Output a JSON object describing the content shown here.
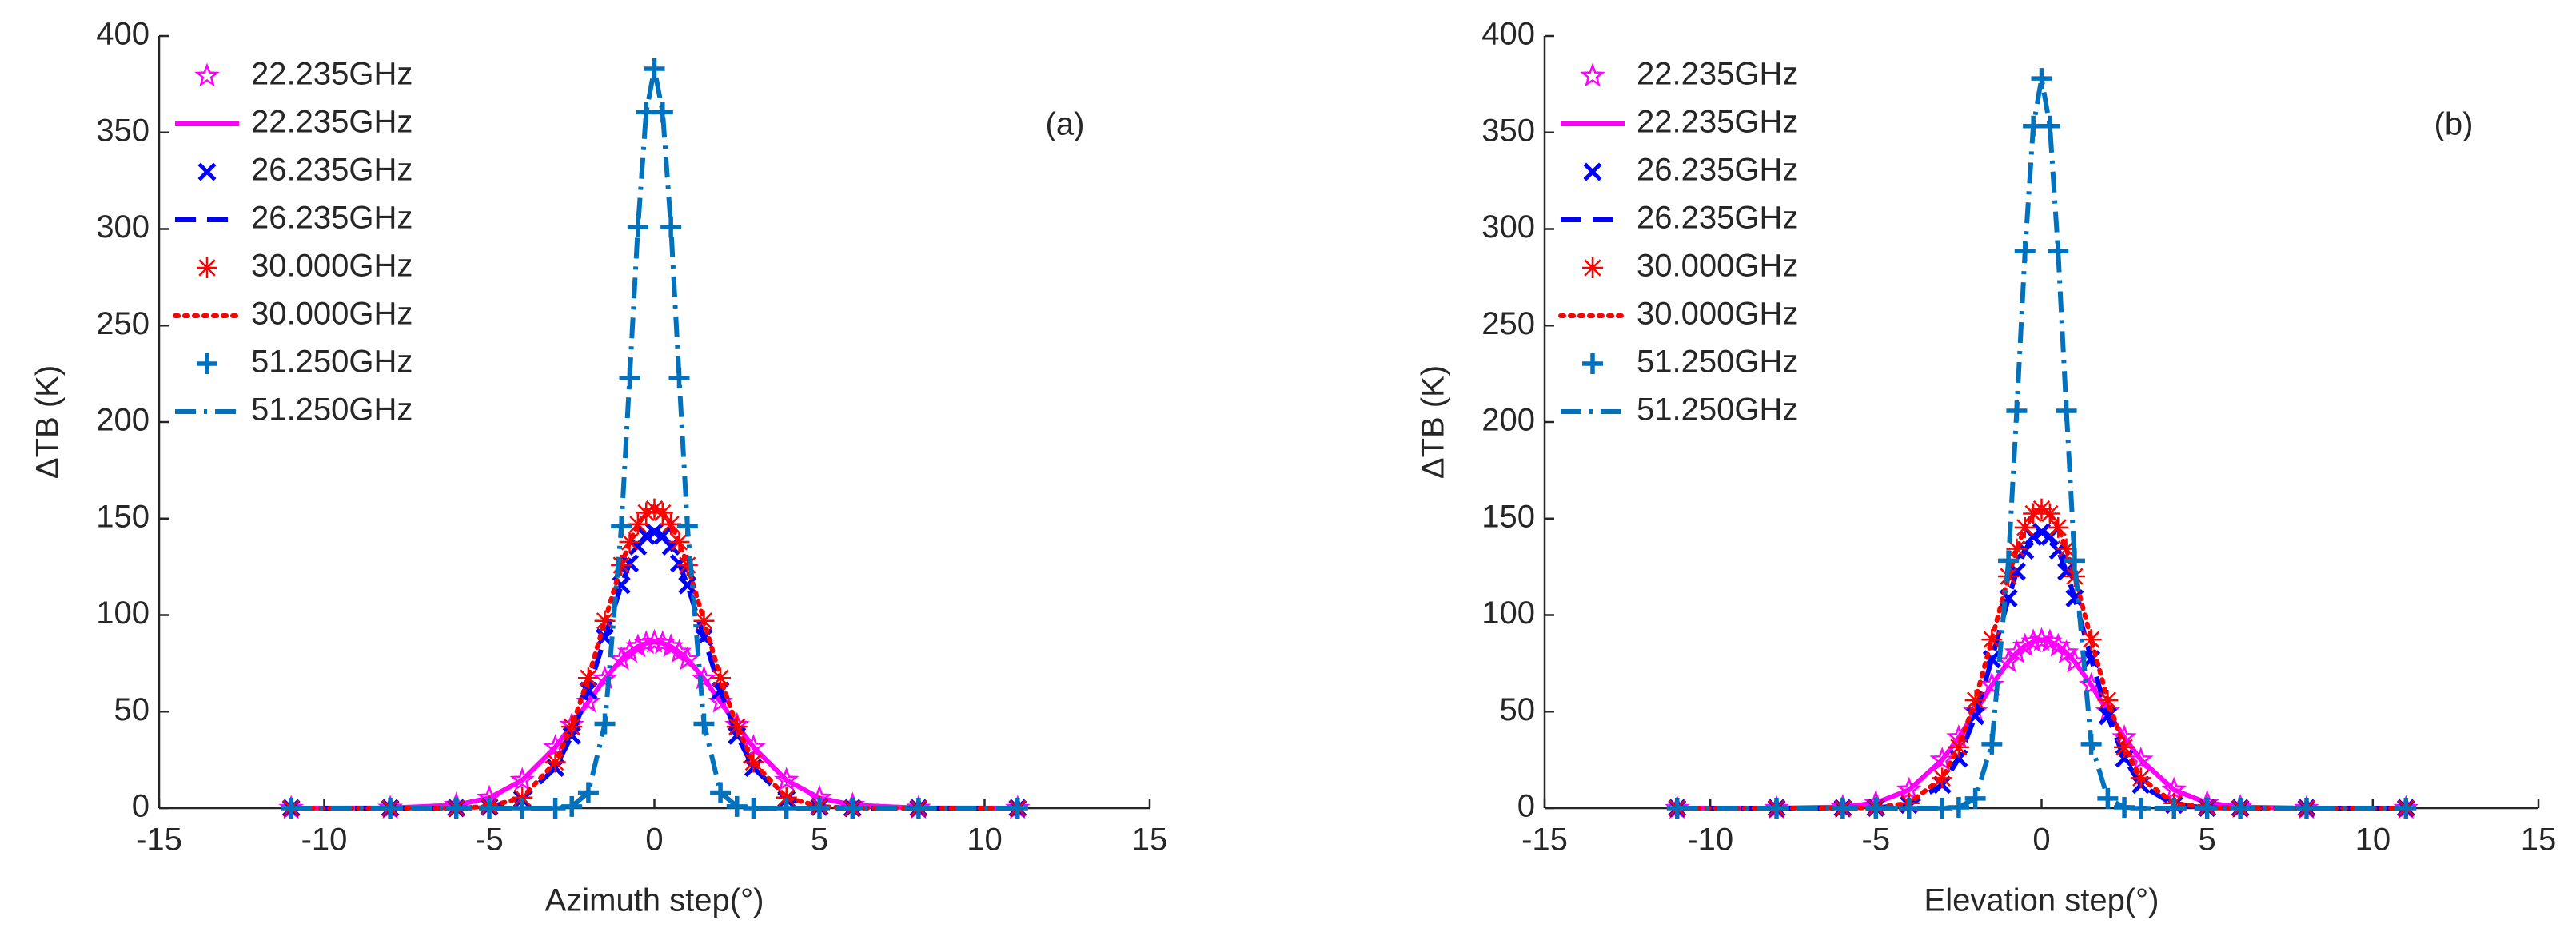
{
  "chart_data": [
    {
      "type": "line",
      "xlabel": "Azimuth step(°)",
      "ylabel": "ΔTB (K)",
      "annotation": "(a)",
      "x": [
        -11,
        -8,
        -6,
        -5,
        -4,
        -3,
        -2.5,
        -2,
        -1.5,
        -1,
        -0.75,
        -0.5,
        -0.25,
        0,
        0.25,
        0.5,
        0.75,
        1,
        1.5,
        2,
        2.5,
        3,
        4,
        5,
        6,
        8,
        11
      ],
      "xlim": [
        -15,
        15
      ],
      "xticks": [
        -15,
        -10,
        -5,
        0,
        5,
        10,
        15
      ],
      "ylim": [
        0,
        400
      ],
      "yticks": [
        0,
        50,
        100,
        150,
        200,
        250,
        300,
        350,
        400
      ],
      "legend": "upper left",
      "series": [
        {
          "name": "22.235GHz",
          "color": "#ff00ff",
          "marker": "pentagram",
          "values": [
            0,
            0.1,
            1.6,
            5.3,
            14.5,
            31.6,
            43,
            55,
            67,
            77,
            80.8,
            83.7,
            85.4,
            86,
            85.4,
            83.7,
            80.8,
            77,
            67,
            55,
            43,
            31.6,
            14.5,
            5.3,
            1.6,
            0.1,
            0
          ]
        },
        {
          "name": "22.235GHz",
          "color": "#ff00ff",
          "linestyle": "solid",
          "values": [
            0,
            0.1,
            1.6,
            5.3,
            14.5,
            31.6,
            43,
            55,
            67,
            77,
            80.8,
            83.7,
            85.4,
            86,
            85.4,
            83.7,
            80.8,
            77,
            67,
            55,
            43,
            31.6,
            14.5,
            5.3,
            1.6,
            0.1,
            0
          ]
        },
        {
          "name": "26.235GHz",
          "color": "#0000ff",
          "marker": "x",
          "values": [
            0,
            0,
            0,
            0.7,
            4.7,
            20.9,
            37.6,
            60.8,
            88.4,
            115.5,
            126.8,
            135.6,
            141.1,
            143,
            141.1,
            135.6,
            126.8,
            115.5,
            88.4,
            60.8,
            37.6,
            20.9,
            4.7,
            0.7,
            0,
            0,
            0
          ]
        },
        {
          "name": "26.235GHz",
          "color": "#0000ff",
          "linestyle": "dashed",
          "values": [
            0,
            0,
            0,
            0.7,
            4.7,
            20.9,
            37.6,
            60.8,
            88.4,
            115.5,
            126.8,
            135.6,
            141.1,
            143,
            141.1,
            135.6,
            126.8,
            115.5,
            88.4,
            60.8,
            37.6,
            20.9,
            4.7,
            0.7,
            0,
            0,
            0
          ]
        },
        {
          "name": "30.000GHz",
          "color": "#ff0000",
          "marker": "asterisk",
          "values": [
            0,
            0,
            0,
            0.9,
            5.5,
            23.8,
            42.2,
            67.4,
            97,
            125.9,
            137.9,
            147.1,
            153,
            155,
            153,
            147.1,
            137.9,
            125.9,
            97,
            67.4,
            42.2,
            23.8,
            5.5,
            0.9,
            0,
            0,
            0
          ]
        },
        {
          "name": "30.000GHz",
          "color": "#ff0000",
          "linestyle": "dotted",
          "values": [
            0,
            0,
            0,
            0.9,
            5.5,
            23.8,
            42.2,
            67.4,
            97,
            125.9,
            137.9,
            147.1,
            153,
            155,
            153,
            147.1,
            137.9,
            125.9,
            97,
            67.4,
            42.2,
            23.8,
            5.5,
            0.9,
            0,
            0,
            0
          ]
        },
        {
          "name": "51.250GHz",
          "color": "#0072bd",
          "marker": "plus",
          "values": [
            0,
            0,
            0,
            0,
            0,
            0,
            0.9,
            8.1,
            43.7,
            146,
            222.7,
            301,
            360.5,
            383,
            360.5,
            301,
            222.7,
            146,
            43.7,
            8.1,
            0.9,
            0,
            0,
            0,
            0,
            0,
            0
          ]
        },
        {
          "name": "51.250GHz",
          "color": "#0072bd",
          "linestyle": "dashdot",
          "values": [
            0,
            0,
            0,
            0,
            0,
            0,
            0.9,
            8.1,
            43.7,
            146,
            222.7,
            301,
            360.5,
            383,
            360.5,
            301,
            222.7,
            146,
            43.7,
            8.1,
            0.9,
            0,
            0,
            0,
            0,
            0,
            0
          ]
        }
      ]
    },
    {
      "type": "line",
      "xlabel": "Elevation step(°)",
      "ylabel": "ΔTB (K)",
      "annotation": "(b)",
      "x": [
        -11,
        -8,
        -6,
        -5,
        -4,
        -3,
        -2.5,
        -2,
        -1.5,
        -1,
        -0.75,
        -0.5,
        -0.25,
        0,
        0.25,
        0.5,
        0.75,
        1,
        1.5,
        2,
        2.5,
        3,
        4,
        5,
        6,
        8,
        11
      ],
      "xlim": [
        -15,
        15
      ],
      "xticks": [
        -15,
        -10,
        -5,
        0,
        5,
        10,
        15
      ],
      "ylim": [
        0,
        400
      ],
      "yticks": [
        0,
        50,
        100,
        150,
        200,
        250,
        300,
        350,
        400
      ],
      "legend": "upper left",
      "series": [
        {
          "name": "22.235GHz",
          "color": "#ff00ff",
          "marker": "pentagram",
          "values": [
            0,
            0,
            0.6,
            2.7,
            9.5,
            25,
            36.6,
            50,
            63.7,
            75.8,
            80.5,
            84,
            86.2,
            87,
            86.2,
            84,
            80.5,
            75.8,
            63.7,
            50,
            36.6,
            25,
            9.5,
            2.7,
            0.6,
            0,
            0
          ]
        },
        {
          "name": "22.235GHz",
          "color": "#ff00ff",
          "linestyle": "solid",
          "values": [
            0,
            0,
            0.6,
            2.7,
            9.5,
            25,
            36.6,
            50,
            63.7,
            75.8,
            80.5,
            84,
            86.2,
            87,
            86.2,
            84,
            80.5,
            75.8,
            63.7,
            50,
            36.6,
            25,
            9.5,
            2.7,
            0.6,
            0,
            0
          ]
        },
        {
          "name": "26.235GHz",
          "color": "#0000ff",
          "marker": "x",
          "values": [
            0,
            0,
            0,
            0.2,
            1.8,
            12.1,
            25.7,
            47.7,
            77.1,
            108.7,
            122.6,
            133.5,
            140.6,
            143,
            140.6,
            133.5,
            122.6,
            108.7,
            77.1,
            47.7,
            25.7,
            12.1,
            1.8,
            0.2,
            0,
            0,
            0
          ]
        },
        {
          "name": "26.235GHz",
          "color": "#0000ff",
          "linestyle": "dashed",
          "values": [
            0,
            0,
            0,
            0.2,
            1.8,
            12.1,
            25.7,
            47.7,
            77.1,
            108.7,
            122.6,
            133.5,
            140.6,
            143,
            140.6,
            133.5,
            122.6,
            108.7,
            77.1,
            47.7,
            25.7,
            12.1,
            1.8,
            0.2,
            0,
            0,
            0
          ]
        },
        {
          "name": "30.000GHz",
          "color": "#ff0000",
          "marker": "asterisk",
          "values": [
            0,
            0,
            0,
            0.3,
            2.6,
            15.6,
            31.5,
            55.9,
            87.3,
            120.1,
            134.3,
            145.4,
            152.6,
            155,
            152.6,
            145.4,
            134.3,
            120.1,
            87.3,
            55.9,
            31.5,
            15.6,
            2.6,
            0.3,
            0,
            0,
            0
          ]
        },
        {
          "name": "30.000GHz",
          "color": "#ff0000",
          "linestyle": "dotted",
          "values": [
            0,
            0,
            0,
            0.3,
            2.6,
            15.6,
            31.5,
            55.9,
            87.3,
            120.1,
            134.3,
            145.4,
            152.6,
            155,
            152.6,
            145.4,
            134.3,
            120.1,
            87.3,
            55.9,
            31.5,
            15.6,
            2.6,
            0.3,
            0,
            0,
            0
          ]
        },
        {
          "name": "51.250GHz",
          "color": "#0072bd",
          "marker": "plus",
          "values": [
            0,
            0,
            0,
            0,
            0,
            0,
            0.4,
            5,
            33.2,
            128.2,
            205.8,
            288.5,
            353.3,
            378,
            353.3,
            288.5,
            205.8,
            128.2,
            33.2,
            5,
            0.4,
            0,
            0,
            0,
            0,
            0,
            0
          ]
        },
        {
          "name": "51.250GHz",
          "color": "#0072bd",
          "linestyle": "dashdot",
          "values": [
            0,
            0,
            0,
            0,
            0,
            0,
            0.4,
            5,
            33.2,
            128.2,
            205.8,
            288.5,
            353.3,
            378,
            353.3,
            288.5,
            205.8,
            128.2,
            33.2,
            5,
            0.4,
            0,
            0,
            0,
            0,
            0,
            0
          ]
        }
      ]
    }
  ]
}
